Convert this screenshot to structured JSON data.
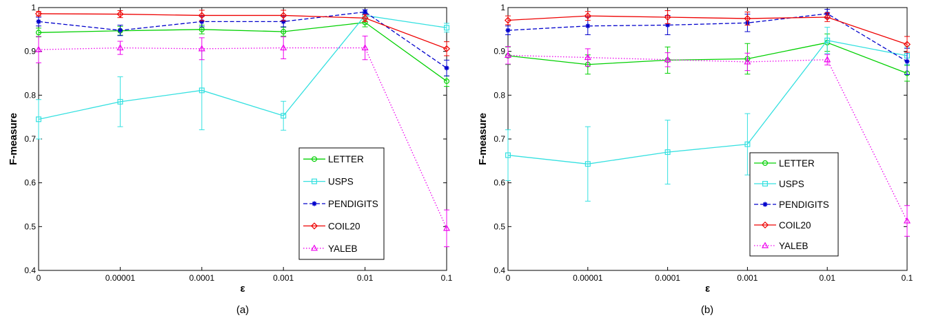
{
  "chart_data": [
    {
      "type": "line",
      "panel_label": "(a)",
      "xlabel": "ε",
      "ylabel": "F-measure",
      "categories": [
        "0",
        "0.00001",
        "0.0001",
        "0.001",
        "0.01",
        "0.1"
      ],
      "yticks": [
        "0.4",
        "0.5",
        "0.6",
        "0.7",
        "0.8",
        "0.9",
        "1"
      ],
      "ylim": [
        0.4,
        1.0
      ],
      "legend_position": "lower-right",
      "series": [
        {
          "name": "LETTER",
          "color": "#00d000",
          "marker": "circle",
          "dash": "solid",
          "values": [
            0.943,
            0.947,
            0.95,
            0.945,
            0.966,
            0.832
          ],
          "err": [
            0.01,
            0.01,
            0.01,
            0.01,
            0.01,
            0.012
          ]
        },
        {
          "name": "USPS",
          "color": "#33e0e0",
          "marker": "square",
          "dash": "solid",
          "values": [
            0.745,
            0.785,
            0.811,
            0.753,
            0.982,
            0.954
          ],
          "err": [
            0.045,
            0.057,
            0.09,
            0.033,
            0.008,
            0.01
          ]
        },
        {
          "name": "PENDIGITS",
          "color": "#0000cc",
          "marker": "star",
          "dash": "dashed",
          "values": [
            0.968,
            0.948,
            0.968,
            0.968,
            0.99,
            0.862
          ],
          "err": [
            0.01,
            0.012,
            0.012,
            0.012,
            0.005,
            0.018
          ]
        },
        {
          "name": "COIL20",
          "color": "#ee0000",
          "marker": "diamond",
          "dash": "solid",
          "values": [
            0.986,
            0.985,
            0.982,
            0.982,
            0.976,
            0.906
          ],
          "err": [
            0.005,
            0.008,
            0.012,
            0.012,
            0.008,
            0.016
          ]
        },
        {
          "name": "YALEB",
          "color": "#ee00ee",
          "marker": "triangle",
          "dash": "dotted",
          "values": [
            0.904,
            0.908,
            0.906,
            0.908,
            0.908,
            0.496
          ],
          "err": [
            0.03,
            0.015,
            0.025,
            0.025,
            0.027,
            0.042
          ]
        }
      ]
    },
    {
      "type": "line",
      "panel_label": "(b)",
      "xlabel": "ε",
      "ylabel": "F-measure",
      "categories": [
        "0",
        "0.00001",
        "0.0001",
        "0.001",
        "0.01",
        "0.1"
      ],
      "yticks": [
        "0.4",
        "0.5",
        "0.6",
        "0.7",
        "0.8",
        "0.9",
        "1"
      ],
      "ylim": [
        0.4,
        1.0
      ],
      "legend_position": "lower-right",
      "series": [
        {
          "name": "LETTER",
          "color": "#00d000",
          "marker": "circle",
          "dash": "solid",
          "values": [
            0.89,
            0.87,
            0.88,
            0.883,
            0.92,
            0.85
          ],
          "err": [
            0.02,
            0.022,
            0.03,
            0.035,
            0.02,
            0.018
          ]
        },
        {
          "name": "USPS",
          "color": "#33e0e0",
          "marker": "square",
          "dash": "solid",
          "values": [
            0.663,
            0.643,
            0.67,
            0.688,
            0.925,
            0.89
          ],
          "err": [
            0.058,
            0.085,
            0.073,
            0.07,
            0.03,
            0.02
          ]
        },
        {
          "name": "PENDIGITS",
          "color": "#0000cc",
          "marker": "star",
          "dash": "dashed",
          "values": [
            0.948,
            0.958,
            0.96,
            0.965,
            0.986,
            0.877
          ],
          "err": [
            0.01,
            0.02,
            0.022,
            0.02,
            0.01,
            0.03
          ]
        },
        {
          "name": "COIL20",
          "color": "#ee0000",
          "marker": "diamond",
          "dash": "solid",
          "values": [
            0.971,
            0.981,
            0.978,
            0.975,
            0.978,
            0.916
          ],
          "err": [
            0.01,
            0.01,
            0.015,
            0.015,
            0.01,
            0.018
          ]
        },
        {
          "name": "YALEB",
          "color": "#ee00ee",
          "marker": "triangle",
          "dash": "dotted",
          "values": [
            0.891,
            0.886,
            0.881,
            0.876,
            0.881,
            0.513
          ],
          "err": [
            0.02,
            0.02,
            0.016,
            0.02,
            0.012,
            0.035
          ]
        }
      ]
    }
  ]
}
